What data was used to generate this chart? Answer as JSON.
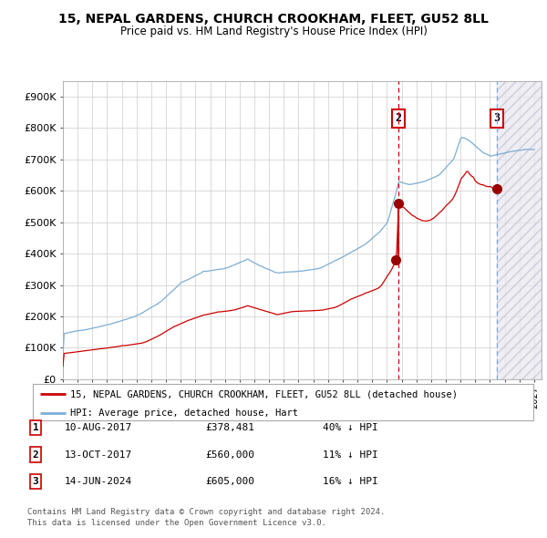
{
  "title1": "15, NEPAL GARDENS, CHURCH CROOKHAM, FLEET, GU52 8LL",
  "title2": "Price paid vs. HM Land Registry's House Price Index (HPI)",
  "xlim_start": 1995.0,
  "xlim_end": 2027.5,
  "ylim": [
    0,
    950000
  ],
  "yticks": [
    0,
    100000,
    200000,
    300000,
    400000,
    500000,
    600000,
    700000,
    800000,
    900000
  ],
  "ytick_labels": [
    "£0",
    "£100K",
    "£200K",
    "£300K",
    "£400K",
    "£500K",
    "£600K",
    "£700K",
    "£800K",
    "£900K"
  ],
  "red_line_color": "#cc0000",
  "blue_line_color": "#7dadd4",
  "dot_color": "#990000",
  "transaction1_x": 2017.6,
  "transaction1_y": 378481,
  "transaction2_x": 2017.79,
  "transaction2_y": 560000,
  "transaction3_x": 2024.45,
  "transaction3_y": 605000,
  "legend_red": "15, NEPAL GARDENS, CHURCH CROOKHAM, FLEET, GU52 8LL (detached house)",
  "legend_blue": "HPI: Average price, detached house, Hart",
  "table_rows": [
    {
      "num": "1",
      "date": "10-AUG-2017",
      "price": "£378,481",
      "hpi": "40% ↓ HPI"
    },
    {
      "num": "2",
      "date": "13-OCT-2017",
      "price": "£560,000",
      "hpi": "11% ↓ HPI"
    },
    {
      "num": "3",
      "date": "14-JUN-2024",
      "price": "£605,000",
      "hpi": "16% ↓ HPI"
    }
  ],
  "footnote1": "Contains HM Land Registry data © Crown copyright and database right 2024.",
  "footnote2": "This data is licensed under the Open Government Licence v3.0.",
  "bg_color": "#ffffff",
  "grid_color": "#cccccc"
}
